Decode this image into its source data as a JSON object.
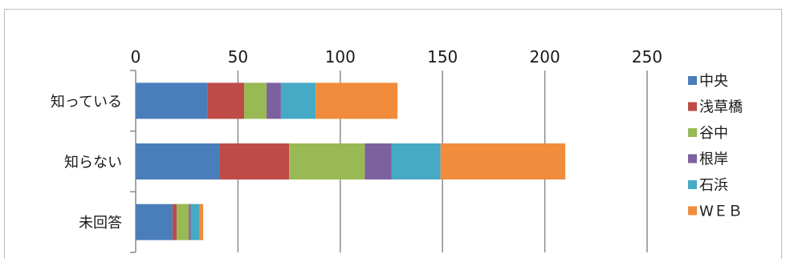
{
  "chart_data": {
    "type": "bar",
    "orientation": "horizontal",
    "stacked": true,
    "categories": [
      "知っている",
      "知らない",
      "未回答"
    ],
    "series": [
      {
        "name": "中央",
        "color": "#4a7ebb",
        "values": [
          35,
          41,
          18
        ]
      },
      {
        "name": "浅草橋",
        "color": "#be4b48",
        "values": [
          18,
          34,
          2
        ]
      },
      {
        "name": "谷中",
        "color": "#98b954",
        "values": [
          11,
          37,
          6
        ]
      },
      {
        "name": "根岸",
        "color": "#7d60a0",
        "values": [
          7,
          13,
          1
        ]
      },
      {
        "name": "石浜",
        "color": "#46aac5",
        "values": [
          17,
          24,
          4
        ]
      },
      {
        "name": "WＥＢ",
        "color": "#f08c3c",
        "values": [
          40,
          61,
          2
        ]
      }
    ],
    "xlim": [
      0,
      250
    ],
    "xticks": [
      0,
      50,
      100,
      150,
      200,
      250
    ],
    "grid": true,
    "legend_position": "right",
    "title": "",
    "xlabel": "",
    "ylabel": ""
  }
}
